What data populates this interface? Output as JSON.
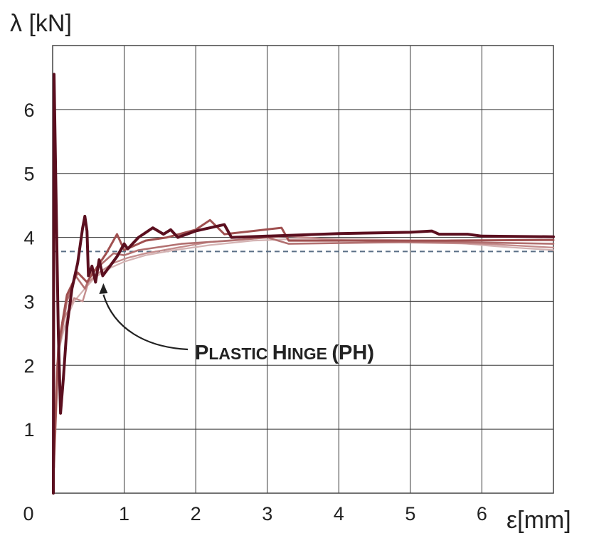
{
  "chart_data": {
    "type": "line",
    "title": "",
    "ylabel": "λ [kN]",
    "xlabel": "ε[mm]",
    "xlim": [
      0,
      7
    ],
    "ylim": [
      0,
      7
    ],
    "x_ticks": [
      "0",
      "1",
      "2",
      "3",
      "4",
      "5",
      "6"
    ],
    "y_ticks": [
      "1",
      "2",
      "3",
      "4",
      "5",
      "6"
    ],
    "grid": true,
    "reference_line": {
      "y": 3.78,
      "style": "dashed",
      "color": "#5a6f86"
    },
    "series": [
      {
        "color": "#d4b3b3",
        "points": [
          [
            0.02,
            0.3
          ],
          [
            0.05,
            1.6
          ],
          [
            0.1,
            2.3
          ],
          [
            0.2,
            2.75
          ],
          [
            0.3,
            3.0
          ],
          [
            0.45,
            3.2
          ],
          [
            0.6,
            3.38
          ],
          [
            0.8,
            3.52
          ],
          [
            1.0,
            3.62
          ],
          [
            1.3,
            3.72
          ],
          [
            1.7,
            3.8
          ],
          [
            2.2,
            3.88
          ],
          [
            2.8,
            3.95
          ],
          [
            3.5,
            3.98
          ],
          [
            4.5,
            3.97
          ],
          [
            5.5,
            3.93
          ],
          [
            6.2,
            3.86
          ],
          [
            7.0,
            3.8
          ]
        ]
      },
      {
        "color": "#c48d8d",
        "points": [
          [
            0.02,
            0.5
          ],
          [
            0.06,
            2.0
          ],
          [
            0.15,
            2.7
          ],
          [
            0.3,
            3.05
          ],
          [
            0.42,
            3.0
          ],
          [
            0.5,
            3.3
          ],
          [
            0.65,
            3.45
          ],
          [
            0.85,
            3.6
          ],
          [
            1.05,
            3.68
          ],
          [
            1.3,
            3.75
          ],
          [
            1.7,
            3.83
          ],
          [
            2.2,
            3.93
          ],
          [
            2.8,
            3.98
          ],
          [
            3.3,
            4.02
          ],
          [
            4.0,
            3.96
          ],
          [
            5.0,
            3.92
          ],
          [
            6.0,
            3.9
          ],
          [
            7.0,
            3.84
          ]
        ]
      },
      {
        "color": "#b27070",
        "points": [
          [
            0.02,
            0.4
          ],
          [
            0.08,
            2.2
          ],
          [
            0.2,
            3.0
          ],
          [
            0.32,
            3.4
          ],
          [
            0.45,
            3.2
          ],
          [
            0.55,
            3.45
          ],
          [
            0.7,
            3.6
          ],
          [
            0.85,
            3.75
          ],
          [
            1.0,
            3.72
          ],
          [
            1.2,
            3.8
          ],
          [
            1.5,
            3.85
          ],
          [
            1.8,
            3.9
          ],
          [
            2.5,
            3.95
          ],
          [
            3.0,
            4.0
          ],
          [
            3.3,
            3.9
          ],
          [
            4.5,
            3.92
          ],
          [
            5.5,
            3.93
          ],
          [
            7.0,
            3.9
          ]
        ]
      },
      {
        "color": "#a05050",
        "points": [
          [
            0.02,
            0.6
          ],
          [
            0.08,
            2.3
          ],
          [
            0.2,
            3.1
          ],
          [
            0.35,
            3.45
          ],
          [
            0.48,
            3.3
          ],
          [
            0.6,
            3.5
          ],
          [
            0.75,
            3.75
          ],
          [
            0.9,
            4.05
          ],
          [
            1.0,
            3.8
          ],
          [
            1.3,
            3.95
          ],
          [
            1.6,
            4.0
          ],
          [
            2.0,
            4.12
          ],
          [
            2.2,
            4.27
          ],
          [
            2.4,
            4.05
          ],
          [
            2.8,
            4.1
          ],
          [
            3.2,
            4.15
          ],
          [
            3.3,
            3.95
          ],
          [
            4.5,
            3.95
          ],
          [
            5.5,
            3.95
          ],
          [
            7.0,
            3.96
          ]
        ]
      },
      {
        "color": "#5b0f1f",
        "points": [
          [
            0.01,
            0.0
          ],
          [
            0.02,
            6.55
          ],
          [
            0.05,
            4.5
          ],
          [
            0.08,
            2.5
          ],
          [
            0.11,
            1.25
          ],
          [
            0.15,
            1.8
          ],
          [
            0.2,
            2.6
          ],
          [
            0.27,
            3.2
          ],
          [
            0.35,
            3.6
          ],
          [
            0.42,
            4.15
          ],
          [
            0.45,
            4.33
          ],
          [
            0.48,
            4.1
          ],
          [
            0.5,
            3.4
          ],
          [
            0.55,
            3.55
          ],
          [
            0.6,
            3.3
          ],
          [
            0.65,
            3.65
          ],
          [
            0.7,
            3.4
          ],
          [
            0.8,
            3.55
          ],
          [
            0.9,
            3.7
          ],
          [
            1.0,
            3.9
          ],
          [
            1.05,
            3.82
          ],
          [
            1.2,
            4.0
          ],
          [
            1.4,
            4.15
          ],
          [
            1.55,
            4.05
          ],
          [
            1.65,
            4.12
          ],
          [
            1.75,
            4.0
          ],
          [
            2.0,
            4.1
          ],
          [
            2.2,
            4.15
          ],
          [
            2.4,
            4.2
          ],
          [
            2.5,
            4.0
          ],
          [
            3.0,
            4.02
          ],
          [
            4.0,
            4.06
          ],
          [
            5.0,
            4.08
          ],
          [
            5.3,
            4.1
          ],
          [
            5.4,
            4.05
          ],
          [
            5.8,
            4.05
          ],
          [
            6.0,
            4.02
          ],
          [
            7.0,
            4.01
          ]
        ]
      }
    ],
    "annotation": {
      "text_parts": [
        {
          "text": "P",
          "size": "big"
        },
        {
          "text": "LASTIC ",
          "size": "small"
        },
        {
          "text": "H",
          "size": "big"
        },
        {
          "text": "INGE ",
          "size": "small"
        },
        {
          "text": "(PH)",
          "size": "big"
        }
      ],
      "arrow_target": [
        0.68,
        3.35
      ]
    }
  }
}
